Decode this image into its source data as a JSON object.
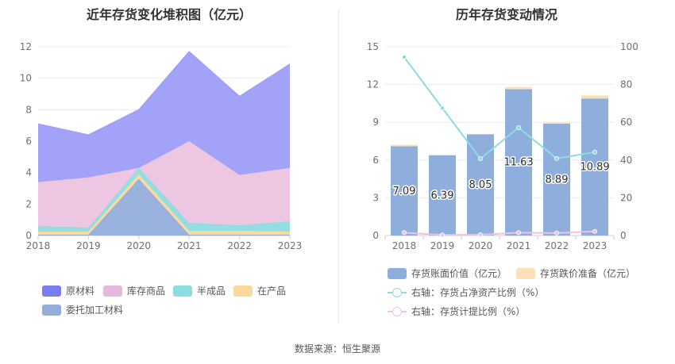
{
  "source_text": "数据来源：恒生聚源",
  "chart_data": [
    {
      "type": "area",
      "stacked": true,
      "title": "近年存货变化堆积图（亿元）",
      "categories": [
        "2018",
        "2019",
        "2020",
        "2021",
        "2022",
        "2023"
      ],
      "ylim": [
        0,
        12
      ],
      "yticks": [
        "0",
        "2",
        "4",
        "6",
        "8",
        "10",
        "12"
      ],
      "grid": true,
      "legend_position": "bottom",
      "series": [
        {
          "name": "委托加工材料",
          "color": "#94aedb",
          "values": [
            0.05,
            0.05,
            3.6,
            0.05,
            0.05,
            0.05
          ]
        },
        {
          "name": "在产品",
          "color": "#fbd89c",
          "values": [
            0.2,
            0.2,
            0.3,
            0.25,
            0.25,
            0.2
          ]
        },
        {
          "name": "半成品",
          "color": "#8ddce0",
          "values": [
            0.35,
            0.25,
            0.4,
            0.5,
            0.35,
            0.65
          ]
        },
        {
          "name": "库存商品",
          "color": "#ecc4e0",
          "values": [
            2.8,
            3.2,
            0.0,
            5.2,
            3.2,
            3.4
          ]
        },
        {
          "name": "原材料",
          "color": "#9d9ef8",
          "values": [
            3.7,
            2.7,
            3.7,
            5.7,
            5.0,
            6.6
          ]
        }
      ],
      "legend_colors": {
        "原材料": "#7b7cf2",
        "库存商品": "#e6b9dc",
        "半成品": "#8ddce0",
        "在产品": "#fbd89c",
        "委托加工材料": "#94aedb"
      }
    },
    {
      "type": "bar",
      "stacked": true,
      "title": "历年存货变动情况",
      "categories": [
        "2018",
        "2019",
        "2020",
        "2021",
        "2022",
        "2023"
      ],
      "ylim": [
        0,
        15
      ],
      "yticks": [
        "0",
        "3",
        "6",
        "9",
        "12",
        "15"
      ],
      "y2lim": [
        0,
        100
      ],
      "y2ticks": [
        "0",
        "20",
        "40",
        "60",
        "80",
        "100"
      ],
      "grid": true,
      "legend_position": "bottom",
      "series": [
        {
          "name": "存货账面价值（亿元）",
          "color": "#8eafdc",
          "values": [
            7.09,
            6.39,
            8.05,
            11.63,
            8.89,
            10.89
          ],
          "labels": [
            "7.09",
            "6.39",
            "8.05",
            "11.63",
            "8.89",
            "10.89"
          ]
        },
        {
          "name": "存货跌价准备（亿元）",
          "color": "#fbe0b8",
          "values": [
            0.12,
            0.02,
            0.03,
            0.18,
            0.12,
            0.25
          ]
        },
        {
          "name": "右轴：存货占净资产比例（%）",
          "color": "#8ddce0",
          "axis": "right",
          "values": [
            94.5,
            67.5,
            40.7,
            57.2,
            40.8,
            44.2
          ]
        },
        {
          "name": "右轴：存货计提比例（%）",
          "color": "#ecc4e0",
          "axis": "right",
          "values": [
            1.5,
            0.3,
            0.4,
            1.5,
            1.3,
            2.2
          ]
        }
      ]
    }
  ]
}
